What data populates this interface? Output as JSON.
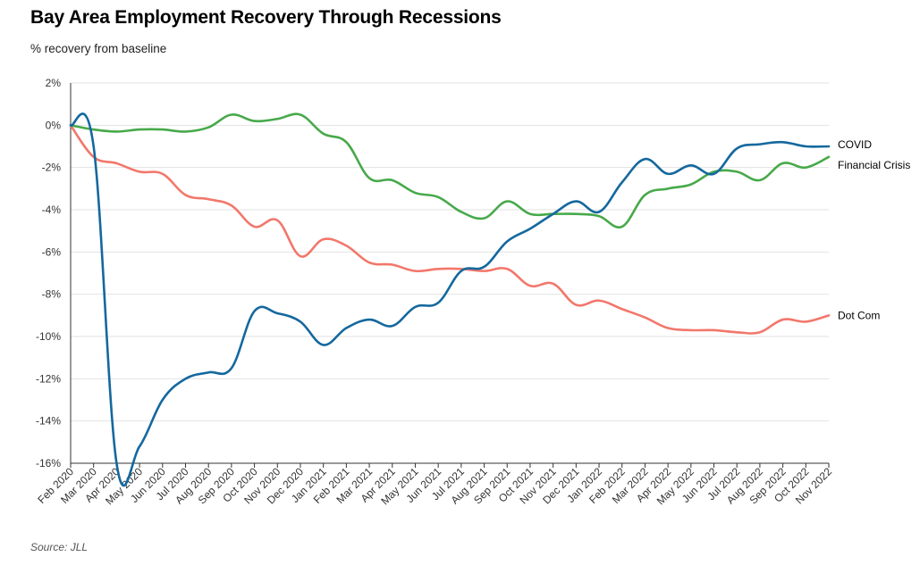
{
  "title": "Bay Area Employment Recovery Through Recessions",
  "subtitle": "% recovery from baseline",
  "source": "Source: JLL",
  "colors": {
    "COVID": "#14689e",
    "Financial Crisis": "#47a94a",
    "Dot Com": "#f2776b",
    "grid": "#e2e2e2",
    "axis": "#333333"
  },
  "chart_data": {
    "type": "line",
    "title": "Bay Area Employment Recovery Through Recessions",
    "subtitle": "% recovery from baseline",
    "xlabel": "",
    "ylabel": "",
    "ylim": [
      -16,
      2
    ],
    "y_ticks": [
      2,
      0,
      -2,
      -4,
      -6,
      -8,
      -10,
      -12,
      -14,
      -16
    ],
    "y_tick_labels": [
      "2%",
      "0%",
      "-2%",
      "-4%",
      "-6%",
      "-8%",
      "-10%",
      "-12%",
      "-14%",
      "-16%"
    ],
    "grid": true,
    "categories": [
      "Feb 2020",
      "Mar 2020",
      "Apr 2020",
      "May 2020",
      "Jun 2020",
      "Jul 2020",
      "Aug 2020",
      "Sep 2020",
      "Oct 2020",
      "Nov 2020",
      "Dec 2020",
      "Jan 2021",
      "Feb 2021",
      "Mar 2021",
      "Apr 2021",
      "May 2021",
      "Jun 2021",
      "Jul 2021",
      "Aug 2021",
      "Sep 2021",
      "Oct 2021",
      "Nov 2021",
      "Dec 2021",
      "Jan 2022",
      "Feb 2022",
      "Mar 2022",
      "Apr 2022",
      "May 2022",
      "Jun 2022",
      "Jul 2022",
      "Aug 2022",
      "Sep 2022",
      "Oct 2022",
      "Nov 2022"
    ],
    "series": [
      {
        "name": "COVID",
        "values": [
          0,
          -1.0,
          -16.0,
          -15.2,
          -13.0,
          -12.0,
          -11.7,
          -11.5,
          -8.8,
          -8.9,
          -9.3,
          -10.4,
          -9.6,
          -9.2,
          -9.5,
          -8.6,
          -8.4,
          -6.9,
          -6.7,
          -5.5,
          -4.9,
          -4.2,
          -3.6,
          -4.1,
          -2.7,
          -1.6,
          -2.3,
          -1.9,
          -2.3,
          -1.1,
          -0.9,
          -0.8,
          -1.0,
          -1.0
        ]
      },
      {
        "name": "Financial Crisis",
        "values": [
          0,
          -0.2,
          -0.3,
          -0.2,
          -0.2,
          -0.3,
          -0.1,
          0.5,
          0.2,
          0.3,
          0.5,
          -0.4,
          -0.8,
          -2.5,
          -2.6,
          -3.2,
          -3.4,
          -4.1,
          -4.4,
          -3.6,
          -4.2,
          -4.2,
          -4.2,
          -4.3,
          -4.8,
          -3.3,
          -3.0,
          -2.8,
          -2.2,
          -2.2,
          -2.6,
          -1.8,
          -2.0,
          -1.5
        ]
      },
      {
        "name": "Dot Com",
        "values": [
          0,
          -1.5,
          -1.8,
          -2.2,
          -2.3,
          -3.3,
          -3.5,
          -3.8,
          -4.8,
          -4.5,
          -6.2,
          -5.4,
          -5.7,
          -6.5,
          -6.6,
          -6.9,
          -6.8,
          -6.8,
          -6.9,
          -6.8,
          -7.6,
          -7.5,
          -8.5,
          -8.3,
          -8.7,
          -9.1,
          -9.6,
          -9.7,
          -9.7,
          -9.8,
          -9.8,
          -9.2,
          -9.3,
          -9.0
        ]
      }
    ]
  }
}
